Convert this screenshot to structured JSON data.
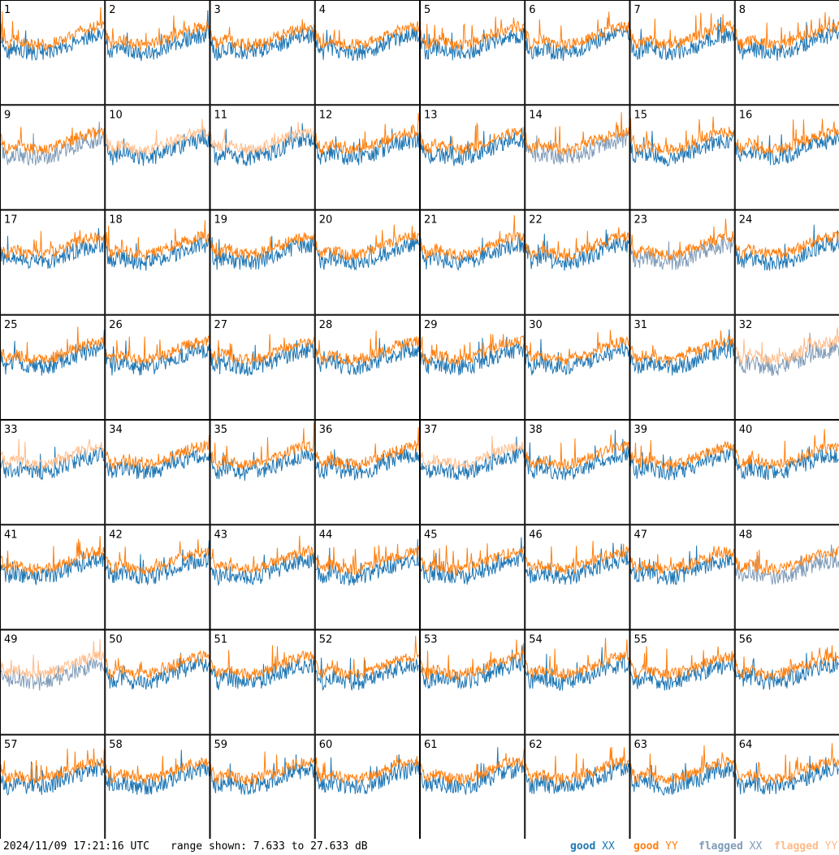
{
  "colors": {
    "good_xx": "#1f77b4",
    "good_yy": "#ff7f0e",
    "flagged_xx": "#7f9bb8",
    "flagged_yy": "#ffbb88",
    "border": "#000000"
  },
  "footer": {
    "timestamp": "2024/11/09 17:21:16 UTC",
    "range": "range shown: 7.633 to 27.633 dB",
    "legend": [
      {
        "label": "good",
        "code": "XX",
        "color_key": "good_xx"
      },
      {
        "label": "good",
        "code": "YY",
        "color_key": "good_yy"
      },
      {
        "label": "flagged",
        "code": "XX",
        "color_key": "flagged_xx"
      },
      {
        "label": "flagged",
        "code": "YY",
        "color_key": "flagged_yy"
      }
    ]
  },
  "chart_data": {
    "type": "line",
    "layout": "small-multiples 8x8",
    "units": "dB",
    "ylim": [
      7.633,
      27.633
    ],
    "series_names": [
      "good XX",
      "good YY",
      "flagged XX",
      "flagged YY"
    ],
    "panels": [
      {
        "id": 1,
        "xx": "good",
        "yy": "good",
        "note": "YY smooth hump, drops at end"
      },
      {
        "id": 2,
        "xx": "good",
        "yy": "good"
      },
      {
        "id": 3,
        "xx": "good",
        "yy": "good"
      },
      {
        "id": 4,
        "xx": "good",
        "yy": "good"
      },
      {
        "id": 5,
        "xx": "good",
        "yy": "good",
        "note": "YY near bottom with spikes"
      },
      {
        "id": 6,
        "xx": "good",
        "yy": "good",
        "note": "XX smooth dip"
      },
      {
        "id": 7,
        "xx": "good",
        "yy": "good"
      },
      {
        "id": 8,
        "xx": "good",
        "yy": "good",
        "note": "YY smooth, drops at end"
      },
      {
        "id": 9,
        "xx": "flagged",
        "yy": "good",
        "note": "XX near bottom with spikes"
      },
      {
        "id": 10,
        "xx": "good",
        "yy": "flagged"
      },
      {
        "id": 11,
        "xx": "good",
        "yy": "flagged"
      },
      {
        "id": 12,
        "xx": "good",
        "yy": "good"
      },
      {
        "id": 13,
        "xx": "good",
        "yy": "good",
        "note": "YY smooth, drops at end"
      },
      {
        "id": 14,
        "xx": "flagged",
        "yy": "good"
      },
      {
        "id": 15,
        "xx": "good",
        "yy": "good"
      },
      {
        "id": 16,
        "xx": "good",
        "yy": "good",
        "note": "YY near bottom with spikes"
      },
      {
        "id": 17,
        "xx": "good",
        "yy": "good"
      },
      {
        "id": 18,
        "xx": "good",
        "yy": "good"
      },
      {
        "id": 19,
        "xx": "good",
        "yy": "good"
      },
      {
        "id": 20,
        "xx": "good",
        "yy": "good"
      },
      {
        "id": 21,
        "xx": "good",
        "yy": "good"
      },
      {
        "id": 22,
        "xx": "good",
        "yy": "good"
      },
      {
        "id": 23,
        "xx": "flagged",
        "yy": "good",
        "note": "XX noisy spikes"
      },
      {
        "id": 24,
        "xx": "good",
        "yy": "good"
      },
      {
        "id": 25,
        "xx": "good",
        "yy": "good",
        "note": "XX near bottom with spikes"
      },
      {
        "id": 26,
        "xx": "good",
        "yy": "good"
      },
      {
        "id": 27,
        "xx": "good",
        "yy": "good",
        "note": "XX smooth hump"
      },
      {
        "id": 28,
        "xx": "good",
        "yy": "good"
      },
      {
        "id": 29,
        "xx": "good",
        "yy": "good"
      },
      {
        "id": 30,
        "xx": "good",
        "yy": "good"
      },
      {
        "id": 31,
        "xx": "good",
        "yy": "good"
      },
      {
        "id": 32,
        "xx": "flagged",
        "yy": "flagged",
        "note": "XX near bottom with spikes"
      },
      {
        "id": 33,
        "xx": "good",
        "yy": "flagged"
      },
      {
        "id": 34,
        "xx": "good",
        "yy": "good",
        "note": "YY near bottom with spikes"
      },
      {
        "id": 35,
        "xx": "good",
        "yy": "good"
      },
      {
        "id": 36,
        "xx": "good",
        "yy": "good"
      },
      {
        "id": 37,
        "xx": "good",
        "yy": "flagged"
      },
      {
        "id": 38,
        "xx": "good",
        "yy": "good"
      },
      {
        "id": 39,
        "xx": "good",
        "yy": "good",
        "note": "XX near bottom with spikes"
      },
      {
        "id": 40,
        "xx": "good",
        "yy": "good"
      },
      {
        "id": 41,
        "xx": "good",
        "yy": "good"
      },
      {
        "id": 42,
        "xx": "good",
        "yy": "good"
      },
      {
        "id": 43,
        "xx": "good",
        "yy": "good"
      },
      {
        "id": 44,
        "xx": "good",
        "yy": "good",
        "note": "YY smooth, drops at end"
      },
      {
        "id": 45,
        "xx": "good",
        "yy": "good"
      },
      {
        "id": 46,
        "xx": "good",
        "yy": "good"
      },
      {
        "id": 47,
        "xx": "good",
        "yy": "good",
        "note": "YY smooth, drops at end"
      },
      {
        "id": 48,
        "xx": "flagged",
        "yy": "good"
      },
      {
        "id": 49,
        "xx": "flagged",
        "yy": "flagged"
      },
      {
        "id": 50,
        "xx": "good",
        "yy": "good",
        "note": "XX smooth, drops at end"
      },
      {
        "id": 51,
        "xx": "good",
        "yy": "good"
      },
      {
        "id": 52,
        "xx": "good",
        "yy": "good"
      },
      {
        "id": 53,
        "xx": "good",
        "yy": "good"
      },
      {
        "id": 54,
        "xx": "good",
        "yy": "good"
      },
      {
        "id": 55,
        "xx": "good",
        "yy": "good",
        "note": "XX near bottom with spikes"
      },
      {
        "id": 56,
        "xx": "good",
        "yy": "good"
      },
      {
        "id": 57,
        "xx": "good",
        "yy": "good"
      },
      {
        "id": 58,
        "xx": "good",
        "yy": "good"
      },
      {
        "id": 59,
        "xx": "good",
        "yy": "good"
      },
      {
        "id": 60,
        "xx": "good",
        "yy": "good"
      },
      {
        "id": 61,
        "xx": "good",
        "yy": "good",
        "note": "XX smooth hump"
      },
      {
        "id": 62,
        "xx": "good",
        "yy": "good"
      },
      {
        "id": 63,
        "xx": "good",
        "yy": "good"
      },
      {
        "id": 64,
        "xx": "good",
        "yy": "good",
        "note": "YY near bottom with spikes"
      }
    ]
  }
}
